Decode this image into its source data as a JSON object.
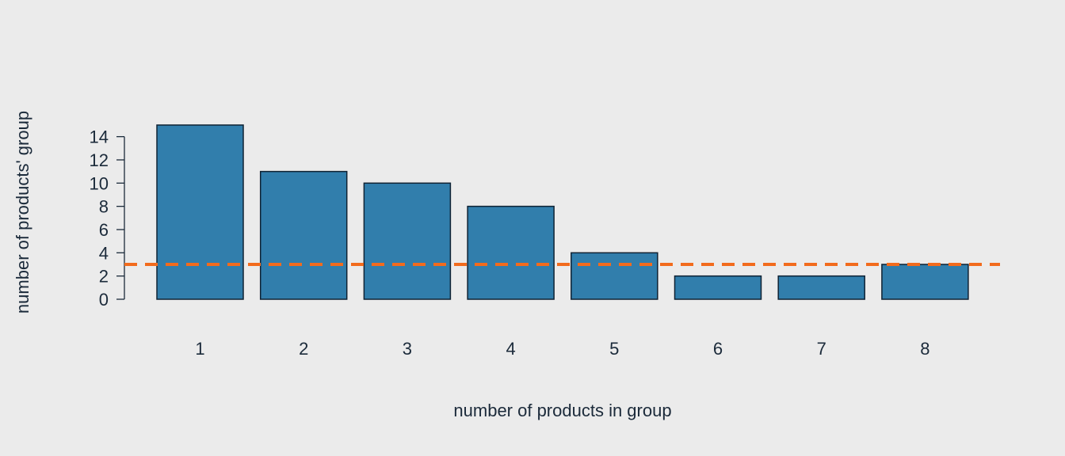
{
  "chart_data": {
    "type": "bar",
    "categories": [
      "1",
      "2",
      "3",
      "4",
      "5",
      "6",
      "7",
      "8"
    ],
    "values": [
      15,
      11,
      10,
      8,
      4,
      2,
      2,
      3
    ],
    "title": "",
    "xlabel": "number of products in group",
    "ylabel": "number of products' group",
    "yticks": [
      0,
      2,
      4,
      6,
      8,
      10,
      12,
      14
    ],
    "ylim": [
      0,
      15
    ],
    "reference_line": {
      "y": 3,
      "style": "dashed",
      "color": "#f26b1d"
    },
    "grid": false,
    "colors": {
      "bar": "#317eac",
      "bar_edge": "#0f2233",
      "text": "#1b2a3a",
      "background": "#ebebeb"
    }
  }
}
